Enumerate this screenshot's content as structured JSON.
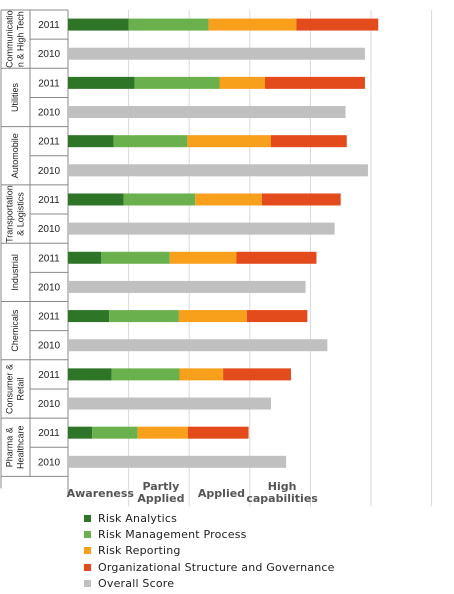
{
  "chart_data": {
    "type": "bar",
    "orientation": "horizontal",
    "stacked": true,
    "categories": [
      {
        "name": "Communication & High Tech",
        "label_lines": [
          "Communicatio",
          "n & High Tech"
        ]
      },
      {
        "name": "Utilities",
        "label_lines": [
          "Utilities"
        ]
      },
      {
        "name": "Automobile",
        "label_lines": [
          "Automobile"
        ]
      },
      {
        "name": "Transportation & Logistics",
        "label_lines": [
          "Transportation",
          "& Logistics"
        ]
      },
      {
        "name": "Industrial",
        "label_lines": [
          "Industrial"
        ]
      },
      {
        "name": "Chemicals",
        "label_lines": [
          "Chemicals"
        ]
      },
      {
        "name": "Consumer & Retail",
        "label_lines": [
          "Consumer &",
          "Retail"
        ]
      },
      {
        "name": "Pharma & Healthcare",
        "label_lines": [
          "Pharma &",
          "Healthcare"
        ]
      }
    ],
    "year_labels": [
      "2011",
      "2010"
    ],
    "series": [
      {
        "name": "Risk Analytics",
        "color": "#2e7527",
        "values": [
          1.0,
          1.1,
          0.75,
          0.92,
          0.55,
          0.68,
          0.72,
          0.4
        ]
      },
      {
        "name": "Risk Management Process",
        "color": "#6ab04c",
        "values": [
          1.32,
          1.4,
          1.22,
          1.18,
          1.13,
          1.15,
          1.12,
          0.75
        ]
      },
      {
        "name": "Risk Reporting",
        "color": "#f8a01c",
        "values": [
          1.45,
          0.75,
          1.38,
          1.1,
          1.1,
          1.12,
          0.72,
          0.83
        ]
      },
      {
        "name": "Organizational Structure and Governance",
        "color": "#e34a1c",
        "values": [
          1.35,
          1.65,
          1.25,
          1.3,
          1.32,
          1.0,
          1.12,
          1.0
        ]
      }
    ],
    "overall_score": {
      "name": "Overall Score",
      "color": "#c0c0c0",
      "values_2010": [
        4.9,
        4.58,
        4.95,
        4.4,
        3.92,
        4.28,
        3.35,
        3.6
      ]
    },
    "x_ticks": [
      "Awareness",
      "Partly Applied",
      "Applied",
      "High capabilities"
    ],
    "x_tick_lines": [
      [
        "Awareness"
      ],
      [
        "Partly",
        "Applied"
      ],
      [
        "Applied"
      ],
      [
        "High",
        "capabilities"
      ]
    ],
    "xlim": [
      0,
      6
    ],
    "grid": true,
    "legend_position": "bottom"
  }
}
